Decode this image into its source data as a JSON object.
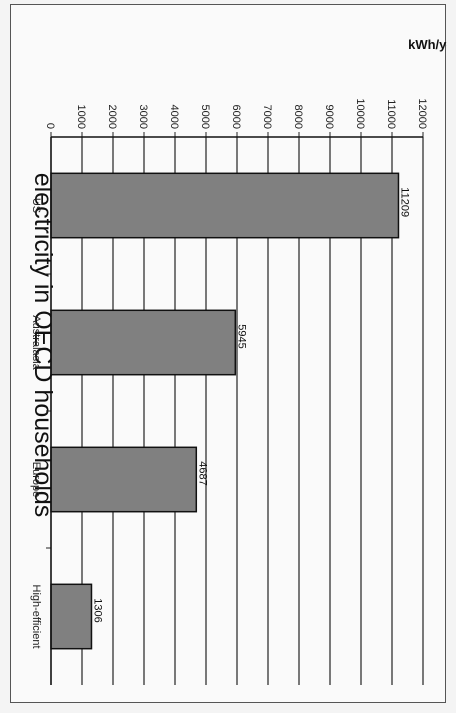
{
  "chart_data": {
    "type": "bar",
    "orientation": "vertical",
    "rotated": "90deg-clockwise",
    "title": "electricity in OECD households",
    "xlabel": "",
    "ylabel": "kWh/year",
    "categories": [
      "US",
      "Australasia",
      "Europe",
      "High-efficient"
    ],
    "values": [
      11209,
      5945,
      4687,
      1306
    ],
    "data_labels": [
      "11209",
      "5945",
      "4687",
      "1306"
    ],
    "ylim": [
      0,
      12000
    ],
    "yticks": [
      0,
      1000,
      2000,
      3000,
      4000,
      5000,
      6000,
      7000,
      8000,
      9000,
      10000,
      11000,
      12000
    ],
    "grid": "horizontal",
    "legend": "none",
    "colors": {
      "bar": "#808080",
      "bar_stroke": "#111111",
      "grid": "#222222",
      "background": "#fafafa"
    }
  }
}
